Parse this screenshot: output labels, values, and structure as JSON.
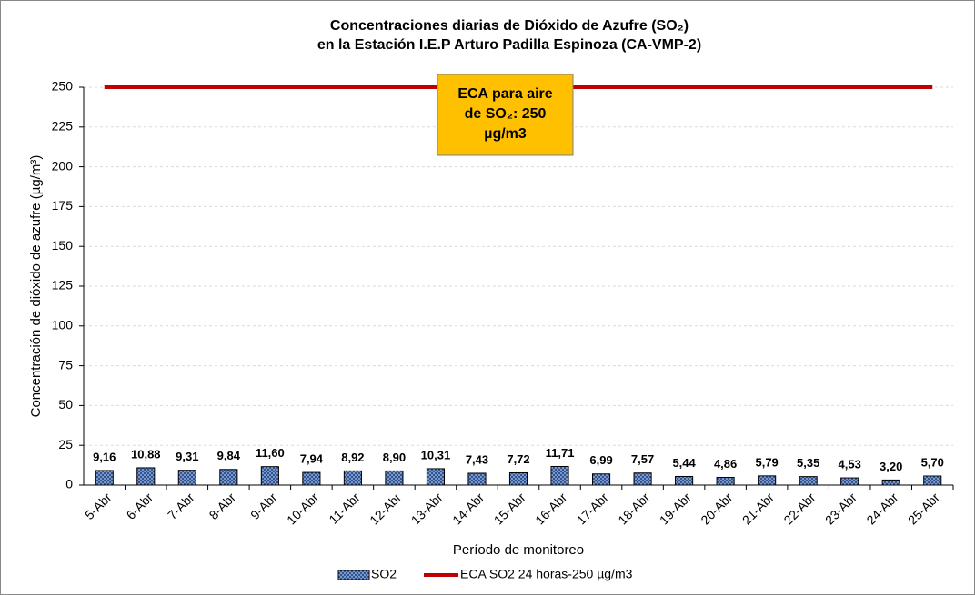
{
  "chart_data": {
    "type": "bar",
    "title": [
      "Concentraciones diarias de Dióxido de Azufre (SO₂)",
      "en la Estación I.E.P  Arturo Padilla Espinoza (CA-VMP-2)"
    ],
    "x_label": "Período de monitoreo",
    "y_label": "Concentración de dióxido de azufre (µg/m³)",
    "categories": [
      "5-Abr",
      "6-Abr",
      "7-Abr",
      "8-Abr",
      "9-Abr",
      "10-Abr",
      "11-Abr",
      "12-Abr",
      "13-Abr",
      "14-Abr",
      "15-Abr",
      "16-Abr",
      "17-Abr",
      "18-Abr",
      "19-Abr",
      "20-Abr",
      "21-Abr",
      "22-Abr",
      "23-Abr",
      "24-Abr",
      "25-Abr"
    ],
    "series": [
      {
        "name": "SO2",
        "type": "bar",
        "color": "#2f5597",
        "values": [
          9.16,
          10.88,
          9.31,
          9.84,
          11.6,
          7.94,
          8.92,
          8.9,
          10.31,
          7.43,
          7.72,
          11.71,
          6.99,
          7.57,
          5.44,
          4.86,
          5.79,
          5.35,
          4.53,
          3.2,
          5.7
        ],
        "value_labels": [
          "9,16",
          "10,88",
          "9,31",
          "9,84",
          "11,60",
          "7,94",
          "8,92",
          "8,90",
          "10,31",
          "7,43",
          "7,72",
          "11,71",
          "6,99",
          "7,57",
          "5,44",
          "4,86",
          "5,79",
          "5,35",
          "4,53",
          "3,20",
          "5,70"
        ]
      },
      {
        "name": "ECA SO2 24 horas-250 µg/m3",
        "type": "line",
        "color": "#c00000",
        "values": [
          250,
          250,
          250,
          250,
          250,
          250,
          250,
          250,
          250,
          250,
          250,
          250,
          250,
          250,
          250,
          250,
          250,
          250,
          250,
          250,
          250
        ]
      }
    ],
    "annotation": [
      "ECA para aire",
      "de SO₂: 250",
      "µg/m3"
    ],
    "annotation_color": "#ffc000",
    "ylim": [
      0,
      250
    ],
    "yticks": [
      0,
      25,
      50,
      75,
      100,
      125,
      150,
      175,
      200,
      225,
      250
    ],
    "grid": true,
    "legend": "bottom"
  }
}
